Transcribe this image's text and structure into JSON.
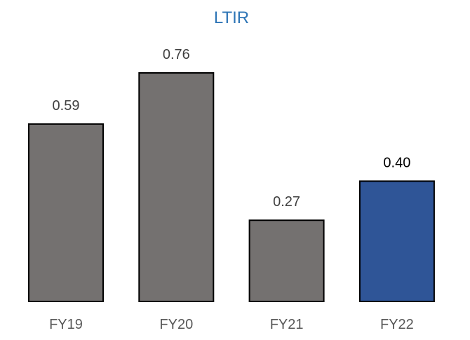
{
  "chart_data": {
    "type": "bar",
    "title": "LTIR",
    "xlabel": "",
    "ylabel": "",
    "categories": [
      "FY19",
      "FY20",
      "FY21",
      "FY22"
    ],
    "values": [
      0.59,
      0.76,
      0.27,
      0.4
    ],
    "value_labels": [
      "0.59",
      "0.76",
      "0.27",
      "0.40"
    ],
    "ylim": [
      0,
      0.76
    ],
    "grid": false,
    "legend": "none",
    "bar_colors": [
      "#747170",
      "#747170",
      "#747170",
      "#2F5597"
    ],
    "bar_outline_color": "#000000",
    "title_color": "#2E75B6",
    "value_label_colors": [
      "#404040",
      "#404040",
      "#404040",
      "#000000"
    ],
    "category_label_color": "#595959"
  }
}
